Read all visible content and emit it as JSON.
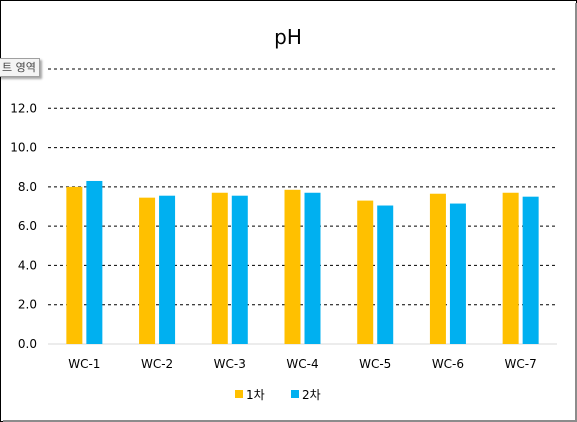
{
  "tooltip": {
    "text": "트 영역"
  },
  "chart_data": {
    "type": "bar",
    "title": "pH",
    "categories": [
      "WC-1",
      "WC-2",
      "WC-3",
      "WC-4",
      "WC-5",
      "WC-6",
      "WC-7"
    ],
    "series": [
      {
        "name": "1차",
        "color": "#FFC000",
        "values": [
          8.0,
          7.45,
          7.7,
          7.85,
          7.3,
          7.65,
          7.7
        ]
      },
      {
        "name": "2차",
        "color": "#00B0F0",
        "values": [
          8.3,
          7.55,
          7.55,
          7.7,
          7.05,
          7.15,
          7.5
        ]
      }
    ],
    "ylim": [
      0,
      14
    ],
    "yticks": [
      "0.0",
      "2.0",
      "4.0",
      "6.0",
      "8.0",
      "10.0",
      "12.0"
    ],
    "grid": true,
    "legend_position": "bottom"
  }
}
